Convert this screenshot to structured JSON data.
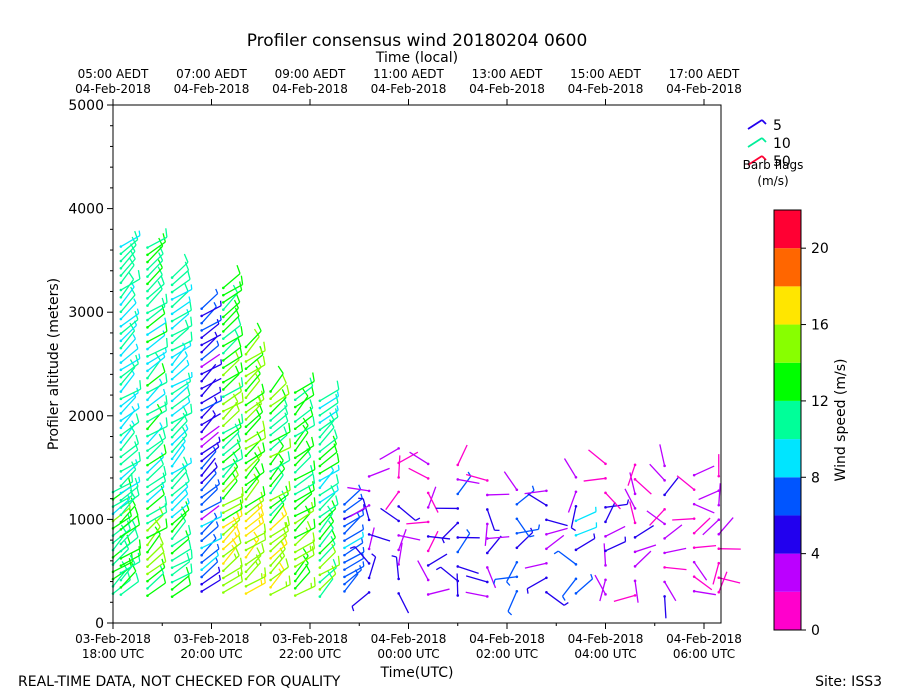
{
  "chart_data": {
    "type": "wind_barb_profile",
    "title": "Profiler consensus wind 20180204 0600",
    "top_axis_label": "Time (local)",
    "xlabel": "Time(UTC)",
    "ylabel": "Profiler altitude (meters)",
    "xlim_hours_utc": [
      0,
      6.2
    ],
    "ylim": [
      0,
      5000
    ],
    "y_ticks": [
      0,
      1000,
      2000,
      3000,
      4000,
      5000
    ],
    "bottom_ticks": [
      {
        "h": 0,
        "l1": "03-Feb-2018",
        "l2": "18:00 UTC"
      },
      {
        "h": 1,
        "l1": "03-Feb-2018",
        "l2": "20:00 UTC"
      },
      {
        "h": 2,
        "l1": "03-Feb-2018",
        "l2": "22:00 UTC"
      },
      {
        "h": 3,
        "l1": "04-Feb-2018",
        "l2": "00:00 UTC"
      },
      {
        "h": 4,
        "l1": "04-Feb-2018",
        "l2": "02:00 UTC"
      },
      {
        "h": 5,
        "l1": "04-Feb-2018",
        "l2": "04:00 UTC"
      },
      {
        "h": 6,
        "l1": "04-Feb-2018",
        "l2": "06:00 UTC"
      }
    ],
    "top_ticks": [
      {
        "h": 0,
        "l1": "05:00 AEDT",
        "l2": "04-Feb-2018"
      },
      {
        "h": 1,
        "l1": "07:00 AEDT",
        "l2": "04-Feb-2018"
      },
      {
        "h": 2,
        "l1": "09:00 AEDT",
        "l2": "04-Feb-2018"
      },
      {
        "h": 3,
        "l1": "11:00 AEDT",
        "l2": "04-Feb-2018"
      },
      {
        "h": 4,
        "l1": "13:00 AEDT",
        "l2": "04-Feb-2018"
      },
      {
        "h": 5,
        "l1": "15:00 AEDT",
        "l2": "04-Feb-2018"
      },
      {
        "h": 6,
        "l1": "17:00 AEDT",
        "l2": "04-Feb-2018"
      }
    ],
    "barb_legend": {
      "title_line1": "Barb flags",
      "title_line2": "(m/s)",
      "entries": [
        {
          "value": "5",
          "color": "#2200ee"
        },
        {
          "value": "10",
          "color": "#00ee99"
        },
        {
          "value": "50",
          "color": "#ff0033"
        }
      ]
    },
    "colorbar": {
      "label": "Wind speed (m/s)",
      "range": [
        0,
        22
      ],
      "tick_values": [
        0,
        4,
        8,
        12,
        16,
        20
      ],
      "bins": [
        {
          "from": 0,
          "to": 2,
          "color": "#ff00cc"
        },
        {
          "from": 2,
          "to": 4,
          "color": "#bb00ff"
        },
        {
          "from": 4,
          "to": 6,
          "color": "#2200ee"
        },
        {
          "from": 6,
          "to": 8,
          "color": "#0055ff"
        },
        {
          "from": 8,
          "to": 10,
          "color": "#00e5ff"
        },
        {
          "from": 10,
          "to": 12,
          "color": "#00ff99"
        },
        {
          "from": 12,
          "to": 14,
          "color": "#00ff00"
        },
        {
          "from": 14,
          "to": 16,
          "color": "#88ff00"
        },
        {
          "from": 16,
          "to": 18,
          "color": "#ffe600"
        },
        {
          "from": 18,
          "to": 20,
          "color": "#ff6600"
        },
        {
          "from": 20,
          "to": 22,
          "color": "#ff0033"
        }
      ]
    },
    "profiles": [
      {
        "t": 0.0,
        "top": 1300,
        "speed": 11,
        "variant": 0
      },
      {
        "t": 0.08,
        "top": 3650,
        "speed": 10,
        "variant": 1
      },
      {
        "t": 0.35,
        "top": 3650,
        "speed": 11,
        "variant": 2
      },
      {
        "t": 0.6,
        "top": 3400,
        "speed": 10,
        "variant": 3
      },
      {
        "t": 0.9,
        "top": 3050,
        "speed": 5,
        "variant": 4
      },
      {
        "t": 1.12,
        "top": 3250,
        "speed": 13,
        "variant": 5
      },
      {
        "t": 1.35,
        "top": 2700,
        "speed": 14,
        "variant": 6
      },
      {
        "t": 1.6,
        "top": 2250,
        "speed": 13,
        "variant": 7
      },
      {
        "t": 1.85,
        "top": 2250,
        "speed": 12,
        "variant": 8
      },
      {
        "t": 2.1,
        "top": 2150,
        "speed": 11,
        "variant": 9
      },
      {
        "t": 2.35,
        "top": 1200,
        "speed": 6,
        "variant": 10
      },
      {
        "t": 2.6,
        "top": 1550,
        "speed": 4,
        "variant": 11
      },
      {
        "t": 2.9,
        "top": 1700,
        "speed": 4,
        "variant": 12
      },
      {
        "t": 3.2,
        "top": 1550,
        "speed": 3,
        "variant": 13
      },
      {
        "t": 3.5,
        "top": 1550,
        "speed": 5,
        "variant": 14
      },
      {
        "t": 3.8,
        "top": 1400,
        "speed": 4,
        "variant": 15
      },
      {
        "t": 4.1,
        "top": 1400,
        "speed": 6,
        "variant": 16
      },
      {
        "t": 4.4,
        "top": 1350,
        "speed": 5,
        "variant": 17
      },
      {
        "t": 4.7,
        "top": 1450,
        "speed": 7,
        "variant": 18
      },
      {
        "t": 5.0,
        "top": 1550,
        "speed": 4,
        "variant": 19
      },
      {
        "t": 5.3,
        "top": 1550,
        "speed": 3,
        "variant": 20
      },
      {
        "t": 5.6,
        "top": 1550,
        "speed": 3,
        "variant": 21
      },
      {
        "t": 5.9,
        "top": 1550,
        "speed": 2,
        "variant": 22
      },
      {
        "t": 6.15,
        "top": 1550,
        "speed": 2,
        "variant": 23
      }
    ]
  },
  "footer": {
    "left": "REAL-TIME DATA, NOT CHECKED FOR QUALITY",
    "right": "Site: ISS3"
  }
}
